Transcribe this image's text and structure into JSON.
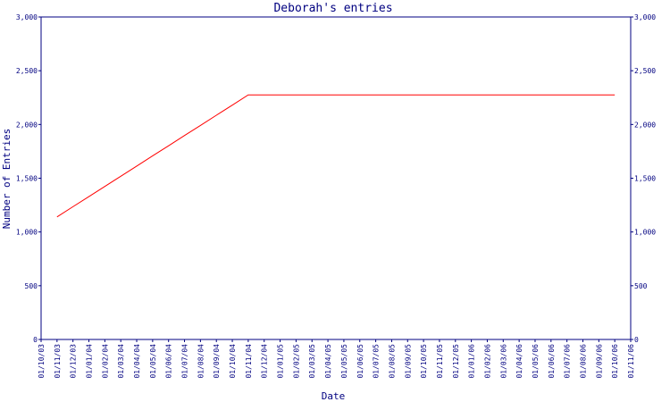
{
  "chart_data": {
    "type": "line",
    "title": "Deborah's entries",
    "x_label": "Date",
    "y_label": "Number of Entries",
    "categories": [
      "01/10/03",
      "01/11/03",
      "01/12/03",
      "01/01/04",
      "01/02/04",
      "01/03/04",
      "01/04/04",
      "01/05/04",
      "01/06/04",
      "01/07/04",
      "01/08/04",
      "01/09/04",
      "01/10/04",
      "01/11/04",
      "01/12/04",
      "01/01/05",
      "01/02/05",
      "01/03/05",
      "01/04/05",
      "01/05/05",
      "01/06/05",
      "01/07/05",
      "01/08/05",
      "01/09/05",
      "01/10/05",
      "01/11/05",
      "01/12/05",
      "01/01/06",
      "01/02/06",
      "01/03/06",
      "01/04/06",
      "01/05/06",
      "01/06/06",
      "01/07/06",
      "01/08/06",
      "01/09/06",
      "01/10/06",
      "01/11/06"
    ],
    "series": [
      {
        "name": "entries",
        "color": "#ff0000",
        "values": [
          null,
          1140,
          1235,
          1329,
          1424,
          1518,
          1613,
          1708,
          1802,
          1897,
          1991,
          2086,
          2180,
          2275,
          2275,
          2275,
          2275,
          2275,
          2275,
          2275,
          2275,
          2275,
          2275,
          2275,
          2275,
          2275,
          2275,
          2275,
          2275,
          2275,
          2275,
          2275,
          2275,
          2275,
          2275,
          2275,
          2275,
          null
        ]
      }
    ],
    "ylim": [
      0,
      3000
    ],
    "yticks": [
      0,
      500,
      {
        "value": 1000,
        "label": "1,000"
      },
      {
        "value": 1500,
        "label": "1,500"
      },
      {
        "value": 2000,
        "label": "2,000"
      },
      {
        "value": 2500,
        "label": "2,500"
      },
      {
        "value": 3000,
        "label": "3,000"
      }
    ],
    "axis_color": "#000080"
  }
}
